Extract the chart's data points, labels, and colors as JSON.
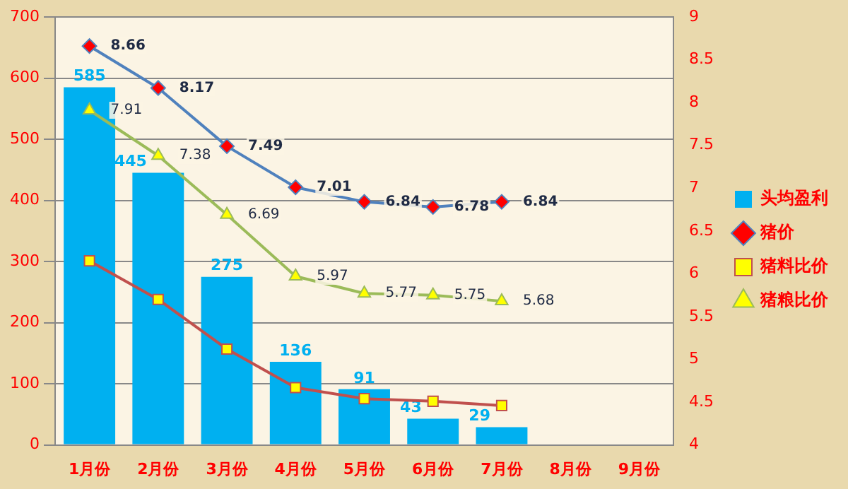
{
  "chart_data": {
    "type": "bar",
    "categories": [
      "1月份",
      "2月份",
      "3月份",
      "4月份",
      "5月份",
      "6月份",
      "7月份",
      "8月份",
      "9月份"
    ],
    "series": [
      {
        "name": "头均盈利",
        "color": "#00b0f0",
        "values": [
          585,
          445,
          275,
          136,
          91,
          43,
          29,
          null,
          null
        ],
        "value_labels": [
          "585",
          "445",
          "275",
          "136",
          "91",
          "43",
          "29",
          null,
          null
        ]
      },
      {
        "name": "猪价",
        "type": "line",
        "axis": "y2",
        "color": "#4f81bd",
        "marker": "diamond",
        "values": [
          8.66,
          8.17,
          7.49,
          7.01,
          6.84,
          6.78,
          6.84,
          null,
          null
        ],
        "value_labels": [
          "8.66",
          "8.17",
          "7.49",
          "7.01",
          "6.84",
          "6.78",
          "6.84",
          null,
          null
        ]
      },
      {
        "name": "猪料比价",
        "type": "line",
        "axis": "y2",
        "color": "#c0504d",
        "marker": "square",
        "values": [
          6.15,
          5.7,
          5.12,
          4.67,
          4.54,
          4.51,
          4.46,
          null,
          null
        ]
      },
      {
        "name": "猪粮比价",
        "type": "line",
        "axis": "y2",
        "color": "#9bbb59",
        "marker": "triangle",
        "values": [
          7.91,
          7.38,
          6.69,
          5.97,
          5.77,
          5.75,
          5.68,
          null,
          null
        ],
        "value_labels": [
          "7.91",
          "7.38",
          "6.69",
          "5.97",
          "5.77",
          "5.75",
          "5.68",
          null,
          null
        ]
      }
    ],
    "ylim": [
      0,
      700
    ],
    "yticks": [
      0,
      100,
      200,
      300,
      400,
      500,
      600,
      700
    ],
    "y2lim": [
      4,
      9
    ],
    "y2ticks": [
      4,
      4.5,
      5,
      5.5,
      6,
      6.5,
      7,
      7.5,
      8,
      8.5,
      9
    ],
    "grid": "y",
    "legend": "right"
  }
}
